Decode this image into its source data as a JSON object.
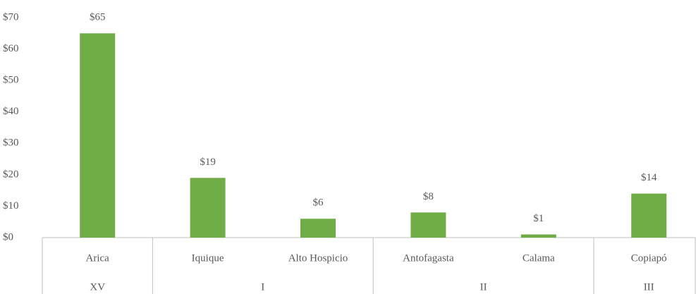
{
  "chart_data": {
    "type": "bar",
    "categories": [
      "Arica",
      "Iquique",
      "Alto Hospicio",
      "Antofagasta",
      "Calama",
      "Copiapó"
    ],
    "groups": [
      {
        "label": "XV",
        "count": 1
      },
      {
        "label": "I",
        "count": 2
      },
      {
        "label": "II",
        "count": 2
      },
      {
        "label": "III",
        "count": 1
      }
    ],
    "values": [
      65,
      19,
      6,
      8,
      1,
      14
    ],
    "value_labels": [
      "$65",
      "$19",
      "$6",
      "$8",
      "$1",
      "$14"
    ],
    "color": "#70ad47",
    "ylim": [
      0,
      70
    ],
    "yticks": [
      {
        "value": 0,
        "label": "$0"
      },
      {
        "value": 10,
        "label": "$10"
      },
      {
        "value": 20,
        "label": "$20"
      },
      {
        "value": 30,
        "label": "$30"
      },
      {
        "value": 40,
        "label": "$40"
      },
      {
        "value": 50,
        "label": "$50"
      },
      {
        "value": 60,
        "label": "$60"
      },
      {
        "value": 70,
        "label": "$70"
      }
    ],
    "grid": false
  }
}
